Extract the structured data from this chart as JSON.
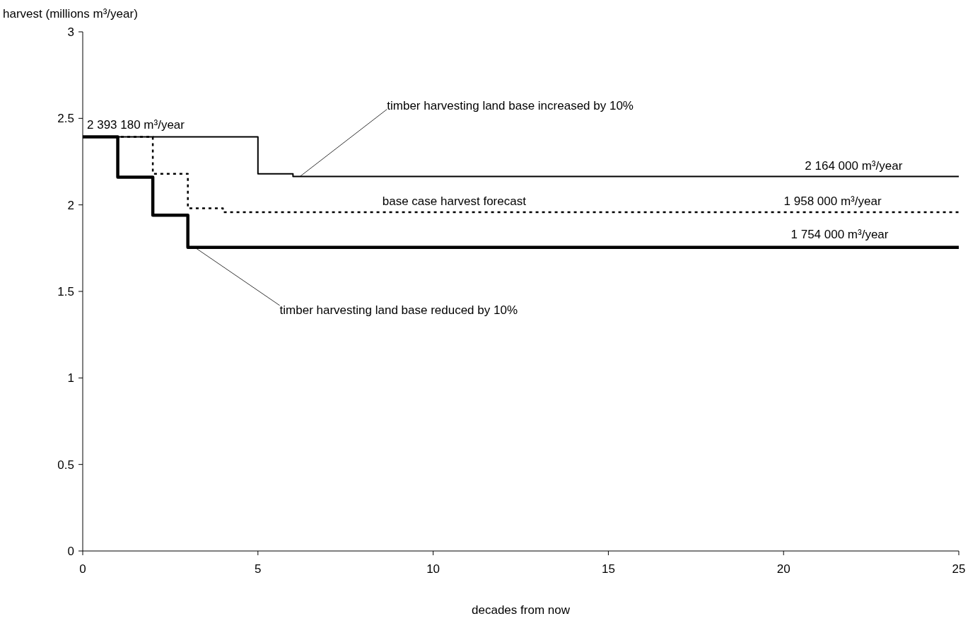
{
  "chart_data": {
    "type": "step",
    "xlabel": "decades from now",
    "ylabel": "harvest (millions m³/year)",
    "xlim": [
      0,
      25
    ],
    "xticks": [
      0,
      5,
      10,
      15,
      20,
      25
    ],
    "ylim": [
      0,
      3
    ],
    "yticks": [
      0,
      0.5,
      1,
      1.5,
      2,
      2.5,
      3
    ],
    "grid": false,
    "series": [
      {
        "color": "#000000",
        "line_style": "solid",
        "x": [
          0,
          5,
          6,
          25
        ],
        "values": [
          2.393,
          2.18,
          2.164,
          2.164
        ]
      },
      {
        "color": "#000000",
        "line_style": "dotted",
        "x": [
          0,
          2,
          3,
          4,
          25
        ],
        "values": [
          2.393,
          2.18,
          1.98,
          1.958,
          1.958
        ]
      },
      {
        "color": "#000000",
        "line_style": "solid",
        "x": [
          0,
          1,
          2,
          3,
          25
        ],
        "values": [
          2.393,
          2.16,
          1.94,
          1.754,
          1.754
        ]
      }
    ],
    "annotations": [
      {
        "text": "2 393 180 m³/year",
        "x": 0,
        "y": 2.393
      },
      {
        "text": "timber harvesting land base increased by 10%",
        "x": 6.2,
        "y": 2.164
      },
      {
        "text": "2 164 000 m³/year",
        "x": 22,
        "y": 2.164
      },
      {
        "text": "base case harvest forecast",
        "x": 10.6,
        "y": 1.958
      },
      {
        "text": "1 958 000 m³/year",
        "x": 21.4,
        "y": 1.958
      },
      {
        "text": "1 754 000 m³/year",
        "x": 21.6,
        "y": 1.754
      },
      {
        "text": "timber harvesting land base reduced by 10%",
        "x": 3.2,
        "y": 1.754
      }
    ]
  }
}
